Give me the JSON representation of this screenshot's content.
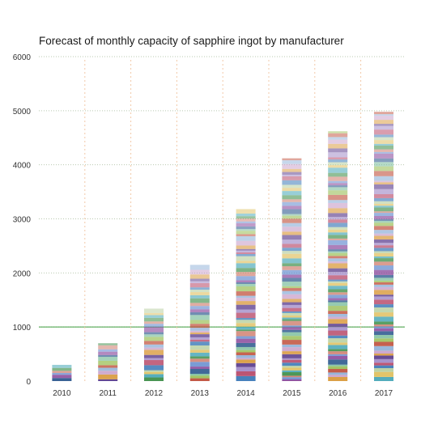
{
  "chart_data": {
    "type": "bar",
    "stacked": true,
    "title": "Forecast of monthly capacity of sapphire ingot by manufacturer",
    "xlabel": "",
    "ylabel": "",
    "categories": [
      "2010",
      "2011",
      "2012",
      "2013",
      "2014",
      "2015",
      "2016",
      "2017"
    ],
    "totals": [
      300,
      700,
      1340,
      2150,
      3180,
      4120,
      4620,
      4980
    ],
    "ylim": [
      0,
      6000
    ],
    "yticks": [
      0,
      1000,
      2000,
      3000,
      4000,
      5000,
      6000
    ],
    "grid": "dotted",
    "legend": "none",
    "reference_line": {
      "value": 1000,
      "color": "#3c9c3c"
    },
    "segment_palette": [
      "#2e5a8f",
      "#5a3c8c",
      "#3f8f4a",
      "#c0503c",
      "#3d7ab8",
      "#8a4a9c",
      "#d99a3c",
      "#4aa8b8",
      "#9cc05a",
      "#b84a6a",
      "#6a8fd0",
      "#c9a0c9",
      "#e0c060",
      "#7fc0a0",
      "#a08ac8",
      "#d08070",
      "#8fb0d8",
      "#b8d0a0"
    ]
  }
}
